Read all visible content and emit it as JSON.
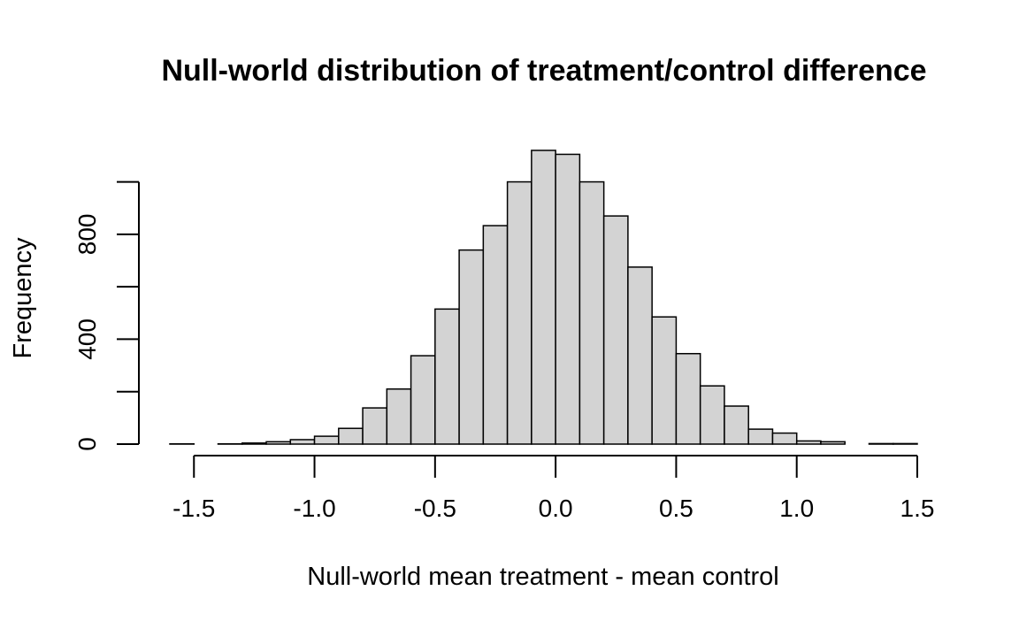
{
  "chart_data": {
    "type": "bar",
    "title": "Null-world distribution of treatment/control difference",
    "xlabel": "Null-world mean treatment - mean control",
    "ylabel": "Frequency",
    "bin_width": 0.1,
    "bin_starts": [
      -1.6,
      -1.5,
      -1.4,
      -1.3,
      -1.2,
      -1.1,
      -1.0,
      -0.9,
      -0.8,
      -0.7,
      -0.6,
      -0.5,
      -0.4,
      -0.3,
      -0.2,
      -0.1,
      0.0,
      0.1,
      0.2,
      0.3,
      0.4,
      0.5,
      0.6,
      0.7,
      0.8,
      0.9,
      1.0,
      1.1,
      1.2,
      1.3,
      1.4
    ],
    "values": [
      1,
      0,
      1,
      4,
      9,
      17,
      30,
      60,
      138,
      210,
      337,
      515,
      740,
      833,
      1000,
      1120,
      1105,
      1000,
      870,
      675,
      485,
      345,
      222,
      145,
      57,
      42,
      12,
      9,
      0,
      2,
      2
    ],
    "xlim": [
      -1.6,
      1.5
    ],
    "ylim": [
      0,
      1120
    ],
    "x_ticks": [
      -1.5,
      -1.0,
      -0.5,
      0.0,
      0.5,
      1.0,
      1.5
    ],
    "x_tick_labels": [
      "-1.5",
      "-1.0",
      "-0.5",
      "0.0",
      "0.5",
      "1.0",
      "1.5"
    ],
    "y_ticks": [
      0,
      200,
      400,
      600,
      800,
      1000
    ],
    "y_tick_labels": [
      "0",
      "",
      "400",
      "",
      "800",
      ""
    ],
    "grid": false,
    "legend": "none"
  }
}
